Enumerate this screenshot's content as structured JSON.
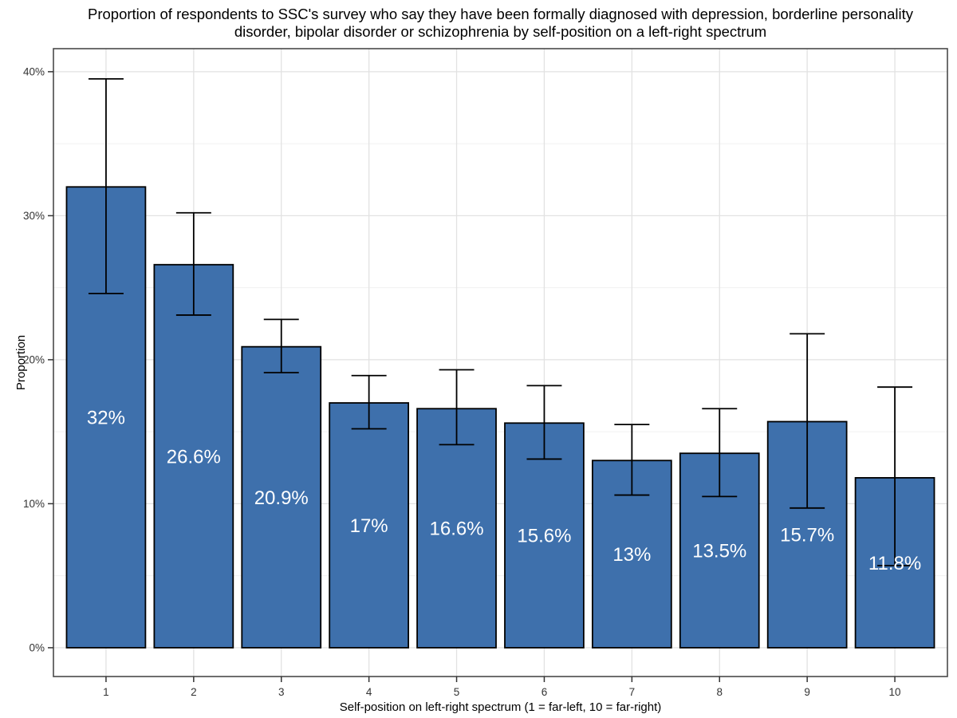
{
  "figure": {
    "title": "Proportion of respondents to SSC's survey who say they have been formally diagnosed with depression, borderline personality disorder, bipolar disorder or schizophrenia by self-position on a left-right spectrum"
  },
  "chart_data": {
    "type": "bar",
    "title": "Proportion of respondents to SSC's survey who say they have been formally diagnosed with depression, borderline personality disorder, bipolar disorder or schizophrenia by self-position on a left-right spectrum",
    "xlabel": "Self-position on left-right spectrum (1 = far-left, 10 = far-right)",
    "ylabel": "Proportion",
    "categories": [
      "1",
      "2",
      "3",
      "4",
      "5",
      "6",
      "7",
      "8",
      "9",
      "10"
    ],
    "values": [
      32,
      26.6,
      20.9,
      17,
      16.6,
      15.6,
      13,
      13.5,
      15.7,
      11.8
    ],
    "bar_labels": [
      "32%",
      "26.6%",
      "20.9%",
      "17%",
      "16.6%",
      "15.6%",
      "13%",
      "13.5%",
      "15.7%",
      "11.8%"
    ],
    "error_low": [
      24.6,
      23.1,
      19.1,
      15.2,
      14.1,
      13.1,
      10.6,
      10.5,
      9.7,
      5.7
    ],
    "error_high": [
      39.5,
      30.2,
      22.8,
      18.9,
      19.3,
      18.2,
      15.5,
      16.6,
      21.8,
      18.1
    ],
    "y_tick_labels": [
      "0%",
      "10%",
      "20%",
      "30%",
      "40%"
    ],
    "y_tick_values": [
      0,
      10,
      20,
      30,
      40
    ],
    "y_minor_values": [
      5,
      15,
      25,
      35
    ],
    "ylim": [
      -2.0,
      41.6
    ],
    "grid": "horizontal major+minor, vertical major at each category",
    "legend": "none",
    "colors": {
      "bar_fill": "#3E70AC",
      "bar_stroke": "#000000",
      "errorbar": "#000000",
      "bar_label_text": "#FFFFFF",
      "grid_major": "#E2E2E2",
      "grid_minor": "#F0F0F0",
      "panel_border": "#4A4A4A",
      "tick_mark": "#333333",
      "axis_text": "#333333",
      "axis_title_text": "#000000",
      "background": "#FFFFFF"
    }
  }
}
